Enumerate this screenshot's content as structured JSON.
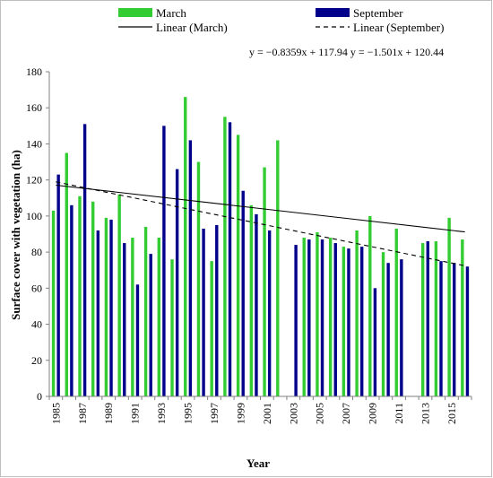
{
  "chart_data": {
    "type": "bar",
    "xlabel": "Year",
    "ylabel": "Surface cover with vegetation (ha)",
    "ylim": [
      0,
      180
    ],
    "yticks": [
      0,
      20,
      40,
      60,
      80,
      100,
      120,
      140,
      160,
      180
    ],
    "grid": false,
    "legend_placement": "top",
    "x": [
      1985,
      1986,
      1987,
      1988,
      1989,
      1990,
      1991,
      1992,
      1993,
      1994,
      1995,
      1996,
      1997,
      1998,
      1999,
      2000,
      2001,
      2002,
      2003,
      2004,
      2005,
      2006,
      2007,
      2008,
      2009,
      2010,
      2011,
      2012,
      2013,
      2014,
      2015,
      2016
    ],
    "x_tick_labels": [
      "1985",
      "1987",
      "1989",
      "1991",
      "1993",
      "1995",
      "1997",
      "1999",
      "2001",
      "2003",
      "2005",
      "2007",
      "2009",
      "2011",
      "2013",
      "2015"
    ],
    "series": [
      {
        "name": "March",
        "color": "#33cc33",
        "values": [
          103,
          135,
          111,
          108,
          99,
          112,
          88,
          94,
          88,
          76,
          166,
          130,
          75,
          155,
          145,
          106,
          127,
          142,
          null,
          88,
          91,
          88,
          83,
          92,
          100,
          80,
          93,
          null,
          85,
          86,
          99,
          87
        ]
      },
      {
        "name": "September",
        "color": "#00008b",
        "values": [
          123,
          106,
          151,
          92,
          98,
          85,
          62,
          79,
          150,
          126,
          142,
          93,
          95,
          152,
          114,
          101,
          92,
          null,
          84,
          87,
          87,
          85,
          82,
          83,
          60,
          74,
          76,
          null,
          86,
          75,
          74,
          72
        ]
      }
    ],
    "trendlines": [
      {
        "name": "Linear (March)",
        "style": "solid",
        "slope": -0.8359,
        "intercept": 117.94
      },
      {
        "name": "Linear (September)",
        "style": "dashed",
        "slope": -1.501,
        "intercept": 120.44
      }
    ],
    "equation_text": "y = −0.8359x + 117.94 y = −1.501x + 120.44"
  }
}
